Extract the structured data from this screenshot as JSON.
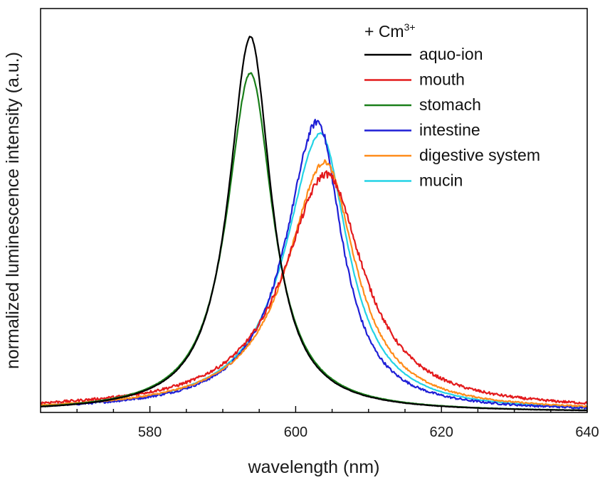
{
  "chart_data": {
    "type": "line",
    "title": "",
    "xlabel": "wavelength (nm)",
    "ylabel": "normalized luminescence intensity (a.u.)",
    "xlim": [
      565,
      640
    ],
    "ylim": [
      0,
      1.0
    ],
    "x_ticks": [
      "580",
      "600",
      "620",
      "640"
    ],
    "y_ticks_shown": false,
    "grid": false,
    "legend_placement": "top-right",
    "legend_title": {
      "prefix": "+ Cm",
      "superscript": "3+"
    },
    "series": [
      {
        "name": "aquo-ion",
        "color": "#000000",
        "peak_x": 593.8,
        "peak_y": 0.93,
        "hwhm_left": 3.6,
        "hwhm_right": 3.4,
        "baseline": 0.0
      },
      {
        "name": "mouth",
        "color": "#e31a1c",
        "peak_x": 604.2,
        "peak_y": 0.59,
        "hwhm_left": 7.0,
        "hwhm_right": 6.2,
        "baseline": 0.006
      },
      {
        "name": "stomach",
        "color": "#1a7f1a",
        "peak_x": 593.8,
        "peak_y": 0.84,
        "hwhm_left": 3.9,
        "hwhm_right": 3.7,
        "baseline": 0.0
      },
      {
        "name": "intestine",
        "color": "#1f1fd6",
        "peak_x": 603.0,
        "peak_y": 0.72,
        "hwhm_left": 5.3,
        "hwhm_right": 4.1,
        "baseline": 0.003
      },
      {
        "name": "digestive system",
        "color": "#ff8c1a",
        "peak_x": 604.0,
        "peak_y": 0.62,
        "hwhm_left": 6.3,
        "hwhm_right": 5.1,
        "baseline": 0.003
      },
      {
        "name": "mucin",
        "color": "#22d3e6",
        "peak_x": 603.4,
        "peak_y": 0.69,
        "hwhm_left": 5.8,
        "hwhm_right": 4.6,
        "baseline": 0.002
      }
    ]
  }
}
